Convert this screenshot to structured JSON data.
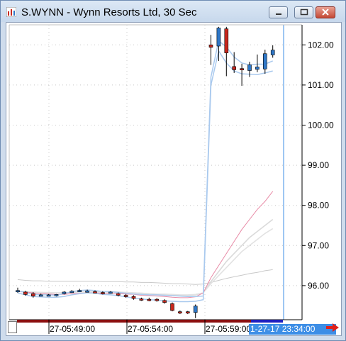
{
  "window": {
    "title": "S.WYNN - Wynn Resorts Ltd, 30 Sec",
    "icons": {
      "app": "chart-app-icon",
      "minimize": "minimize-icon",
      "maximize": "maximize-icon",
      "close": "close-icon",
      "scroll_right": "arrow-right-icon"
    }
  },
  "colors": {
    "up": "#2f78c8",
    "down": "#c8281e",
    "band": "#a9c9ee",
    "ma_fast": "#e88aa6",
    "ma_slow": "#d9d9d9",
    "cursor": "#3d8ee6"
  },
  "chart_data": {
    "type": "candlestick",
    "y_axis": {
      "ylim": [
        95.15,
        102.5
      ],
      "ticks": [
        "102.00",
        "101.00",
        "100.00",
        "99.00",
        "98.00",
        "97.00",
        "96.00"
      ]
    },
    "x_axis": {
      "ticks": [
        "27-05:49:00",
        "27-05:54:00",
        "27-05:59:00"
      ],
      "cursor_label": "1-27-17 23:34:00"
    },
    "candles": [
      {
        "o": 95.88,
        "h": 95.95,
        "l": 95.82,
        "c": 95.86,
        "dir": "up"
      },
      {
        "o": 95.84,
        "h": 95.87,
        "l": 95.75,
        "c": 95.78,
        "dir": "down"
      },
      {
        "o": 95.8,
        "h": 95.84,
        "l": 95.7,
        "c": 95.74,
        "dir": "down"
      },
      {
        "o": 95.77,
        "h": 95.8,
        "l": 95.74,
        "c": 95.77,
        "dir": "up"
      },
      {
        "o": 95.76,
        "h": 95.79,
        "l": 95.74,
        "c": 95.77,
        "dir": "up"
      },
      {
        "o": 95.75,
        "h": 95.79,
        "l": 95.73,
        "c": 95.78,
        "dir": "up"
      },
      {
        "o": 95.8,
        "h": 95.86,
        "l": 95.78,
        "c": 95.84,
        "dir": "up"
      },
      {
        "o": 95.84,
        "h": 95.89,
        "l": 95.82,
        "c": 95.86,
        "dir": "up"
      },
      {
        "o": 95.86,
        "h": 95.92,
        "l": 95.84,
        "c": 95.88,
        "dir": "up"
      },
      {
        "o": 95.86,
        "h": 95.9,
        "l": 95.83,
        "c": 95.87,
        "dir": "up"
      },
      {
        "o": 95.85,
        "h": 95.88,
        "l": 95.81,
        "c": 95.83,
        "dir": "down"
      },
      {
        "o": 95.83,
        "h": 95.86,
        "l": 95.78,
        "c": 95.8,
        "dir": "down"
      },
      {
        "o": 95.83,
        "h": 95.86,
        "l": 95.8,
        "c": 95.84,
        "dir": "up"
      },
      {
        "o": 95.8,
        "h": 95.83,
        "l": 95.73,
        "c": 95.76,
        "dir": "down"
      },
      {
        "o": 95.76,
        "h": 95.79,
        "l": 95.7,
        "c": 95.73,
        "dir": "down"
      },
      {
        "o": 95.73,
        "h": 95.76,
        "l": 95.65,
        "c": 95.68,
        "dir": "down"
      },
      {
        "o": 95.66,
        "h": 95.7,
        "l": 95.62,
        "c": 95.67,
        "dir": "down"
      },
      {
        "o": 95.66,
        "h": 95.7,
        "l": 95.61,
        "c": 95.63,
        "dir": "down"
      },
      {
        "o": 95.66,
        "h": 95.69,
        "l": 95.6,
        "c": 95.63,
        "dir": "down"
      },
      {
        "o": 95.63,
        "h": 95.66,
        "l": 95.55,
        "c": 95.58,
        "dir": "down"
      },
      {
        "o": 95.55,
        "h": 95.58,
        "l": 95.36,
        "c": 95.38,
        "dir": "down"
      },
      {
        "o": 95.35,
        "h": 95.38,
        "l": 95.29,
        "c": 95.32,
        "dir": "down"
      },
      {
        "o": 95.35,
        "h": 95.37,
        "l": 95.29,
        "c": 95.33,
        "dir": "down"
      },
      {
        "o": 95.33,
        "h": 95.53,
        "l": 95.19,
        "c": 95.49,
        "dir": "up"
      },
      {
        "o": null
      },
      {
        "o": 101.94,
        "h": 102.25,
        "l": 101.5,
        "c": 102.0,
        "dir": "down"
      },
      {
        "o": 101.97,
        "h": 102.45,
        "l": 101.6,
        "c": 102.42,
        "dir": "up"
      },
      {
        "o": 102.4,
        "h": 102.45,
        "l": 101.22,
        "c": 101.8,
        "dir": "down"
      },
      {
        "o": 101.46,
        "h": 101.82,
        "l": 101.3,
        "c": 101.38,
        "dir": "down"
      },
      {
        "o": 101.41,
        "h": 101.53,
        "l": 100.98,
        "c": 101.38,
        "dir": "down"
      },
      {
        "o": 101.36,
        "h": 101.58,
        "l": 101.2,
        "c": 101.5,
        "dir": "up"
      },
      {
        "o": 101.39,
        "h": 101.76,
        "l": 101.32,
        "c": 101.45,
        "dir": "up"
      },
      {
        "o": 101.4,
        "h": 101.88,
        "l": 101.28,
        "c": 101.78,
        "dir": "up"
      },
      {
        "o": 101.75,
        "h": 101.99,
        "l": 101.68,
        "c": 101.87,
        "dir": "up"
      }
    ],
    "band_upper": [
      95.87,
      95.83,
      95.78,
      95.77,
      95.77,
      95.76,
      95.8,
      95.85,
      95.88,
      95.89,
      95.88,
      95.85,
      95.85,
      95.83,
      95.81,
      95.79,
      95.78,
      95.77,
      95.77,
      95.76,
      95.75,
      95.74,
      95.73,
      95.73,
      95.74,
      101.2,
      102.1,
      101.95,
      101.7,
      101.55,
      101.5,
      101.52,
      101.52,
      101.6
    ],
    "band_lower": [
      95.82,
      95.77,
      95.73,
      95.72,
      95.71,
      95.71,
      95.73,
      95.77,
      95.8,
      95.82,
      95.81,
      95.78,
      95.77,
      95.75,
      95.72,
      95.69,
      95.67,
      95.65,
      95.64,
      95.62,
      95.61,
      95.6,
      95.6,
      95.61,
      95.65,
      101.0,
      101.85,
      101.55,
      101.35,
      101.28,
      101.27,
      101.26,
      101.3,
      101.35
    ],
    "ma_fast": [
      95.85,
      95.84,
      95.82,
      95.8,
      95.79,
      95.78,
      95.78,
      95.8,
      95.81,
      95.82,
      95.82,
      95.81,
      95.81,
      95.8,
      95.79,
      95.78,
      95.76,
      95.75,
      95.74,
      95.73,
      95.71,
      95.7,
      95.7,
      95.72,
      95.82,
      96.2,
      96.5,
      96.8,
      97.1,
      97.4,
      97.65,
      97.9,
      98.1,
      98.35
    ],
    "ma_slow_1": [
      95.86,
      95.85,
      95.84,
      95.83,
      95.82,
      95.82,
      95.82,
      95.83,
      95.84,
      95.85,
      95.85,
      95.85,
      95.84,
      95.84,
      95.83,
      95.82,
      95.81,
      95.8,
      95.79,
      95.78,
      95.77,
      95.76,
      95.76,
      95.77,
      95.82,
      96.1,
      96.35,
      96.6,
      96.8,
      97.0,
      97.2,
      97.35,
      97.5,
      97.65
    ],
    "ma_slow_2": [
      95.86,
      95.85,
      95.84,
      95.83,
      95.83,
      95.82,
      95.82,
      95.83,
      95.84,
      95.84,
      95.84,
      95.84,
      95.84,
      95.83,
      95.83,
      95.82,
      95.81,
      95.8,
      95.79,
      95.79,
      95.78,
      95.77,
      95.77,
      95.78,
      95.82,
      96.05,
      96.25,
      96.45,
      96.65,
      96.85,
      97.0,
      97.15,
      97.3,
      97.42
    ],
    "ma_long": [
      96.15,
      96.13,
      96.12,
      96.12,
      96.11,
      96.11,
      96.11,
      96.11,
      96.11,
      96.11,
      96.11,
      96.1,
      96.1,
      96.1,
      96.09,
      96.09,
      96.08,
      96.08,
      96.07,
      96.06,
      96.05,
      96.05,
      96.04,
      96.03,
      96.04,
      96.08,
      96.13,
      96.18,
      96.22,
      96.26,
      96.3,
      96.33,
      96.37,
      96.4
    ]
  }
}
